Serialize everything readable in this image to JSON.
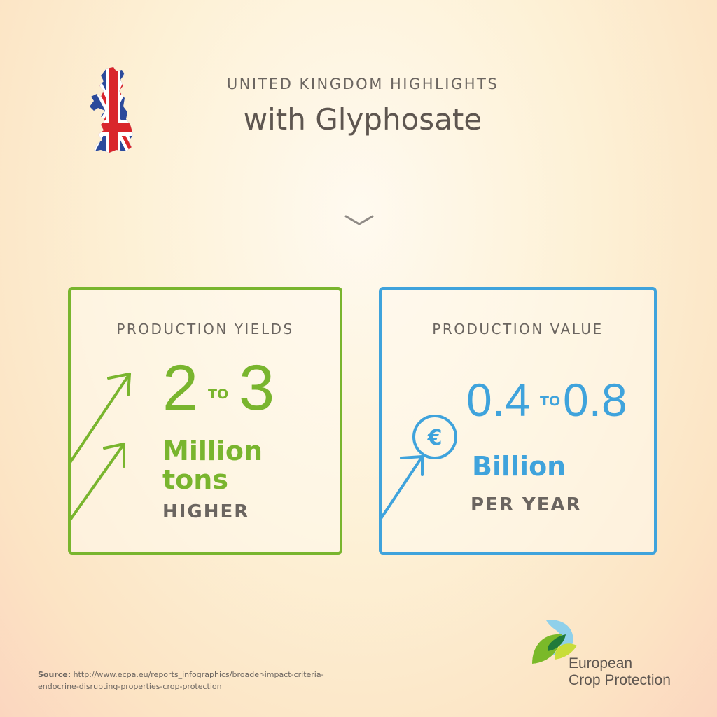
{
  "header": {
    "supertitle": "UNITED KINGDOM HIGHLIGHTS",
    "title": "with Glyphosate"
  },
  "cards": {
    "yields": {
      "heading": "PRODUCTION YIELDS",
      "from": "2",
      "to_word": "TO",
      "to": "3",
      "unit_line1": "Million",
      "unit_line2": "tons",
      "note": "HIGHER",
      "accent": "#79b52e"
    },
    "value": {
      "heading": "PRODUCTION VALUE",
      "from": "0.4",
      "to_word": "TO",
      "to": "0.8",
      "currency_symbol": "€",
      "unit": "Billion",
      "note": "PER YEAR",
      "accent": "#3fa3dc"
    }
  },
  "source": {
    "label": "Source:",
    "line1": "http://www.ecpa.eu/reports_infographics/broader-impact-criteria-",
    "line2": "endocrine-disrupting-properties-crop-protection"
  },
  "logo": {
    "line1": "European",
    "line2": "Crop Protection"
  },
  "icons": {
    "flag": "uk-map-flag-icon",
    "chevron": "chevron-down-icon",
    "arrows": "growth-arrows-icon",
    "euro": "euro-coin-icon"
  }
}
